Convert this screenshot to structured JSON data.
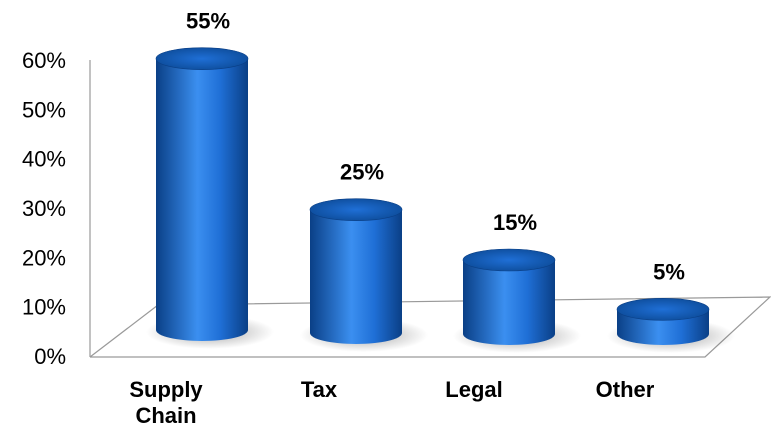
{
  "chart_data": {
    "type": "bar",
    "categories": [
      "Supply Chain",
      "Tax",
      "Legal",
      "Other"
    ],
    "category_lines": [
      [
        "Supply",
        "Chain"
      ],
      [
        "Tax"
      ],
      [
        "Legal"
      ],
      [
        "Other"
      ]
    ],
    "values": [
      55,
      25,
      15,
      5
    ],
    "data_labels": [
      "55%",
      "25%",
      "15%",
      "5%"
    ],
    "y_ticks": [
      "0%",
      "10%",
      "20%",
      "30%",
      "40%",
      "50%",
      "60%"
    ],
    "ylim": [
      0,
      60
    ],
    "grid": false,
    "legend": "none",
    "style": "3d-cylinder",
    "colors": {
      "bar_dark": "#0a3f86",
      "bar_mid": "#1f6fd6",
      "bar_light": "#3b8ff0",
      "bar_top": "#0c4a96",
      "floor_line": "#9a9a9a",
      "text": "#000000"
    }
  }
}
